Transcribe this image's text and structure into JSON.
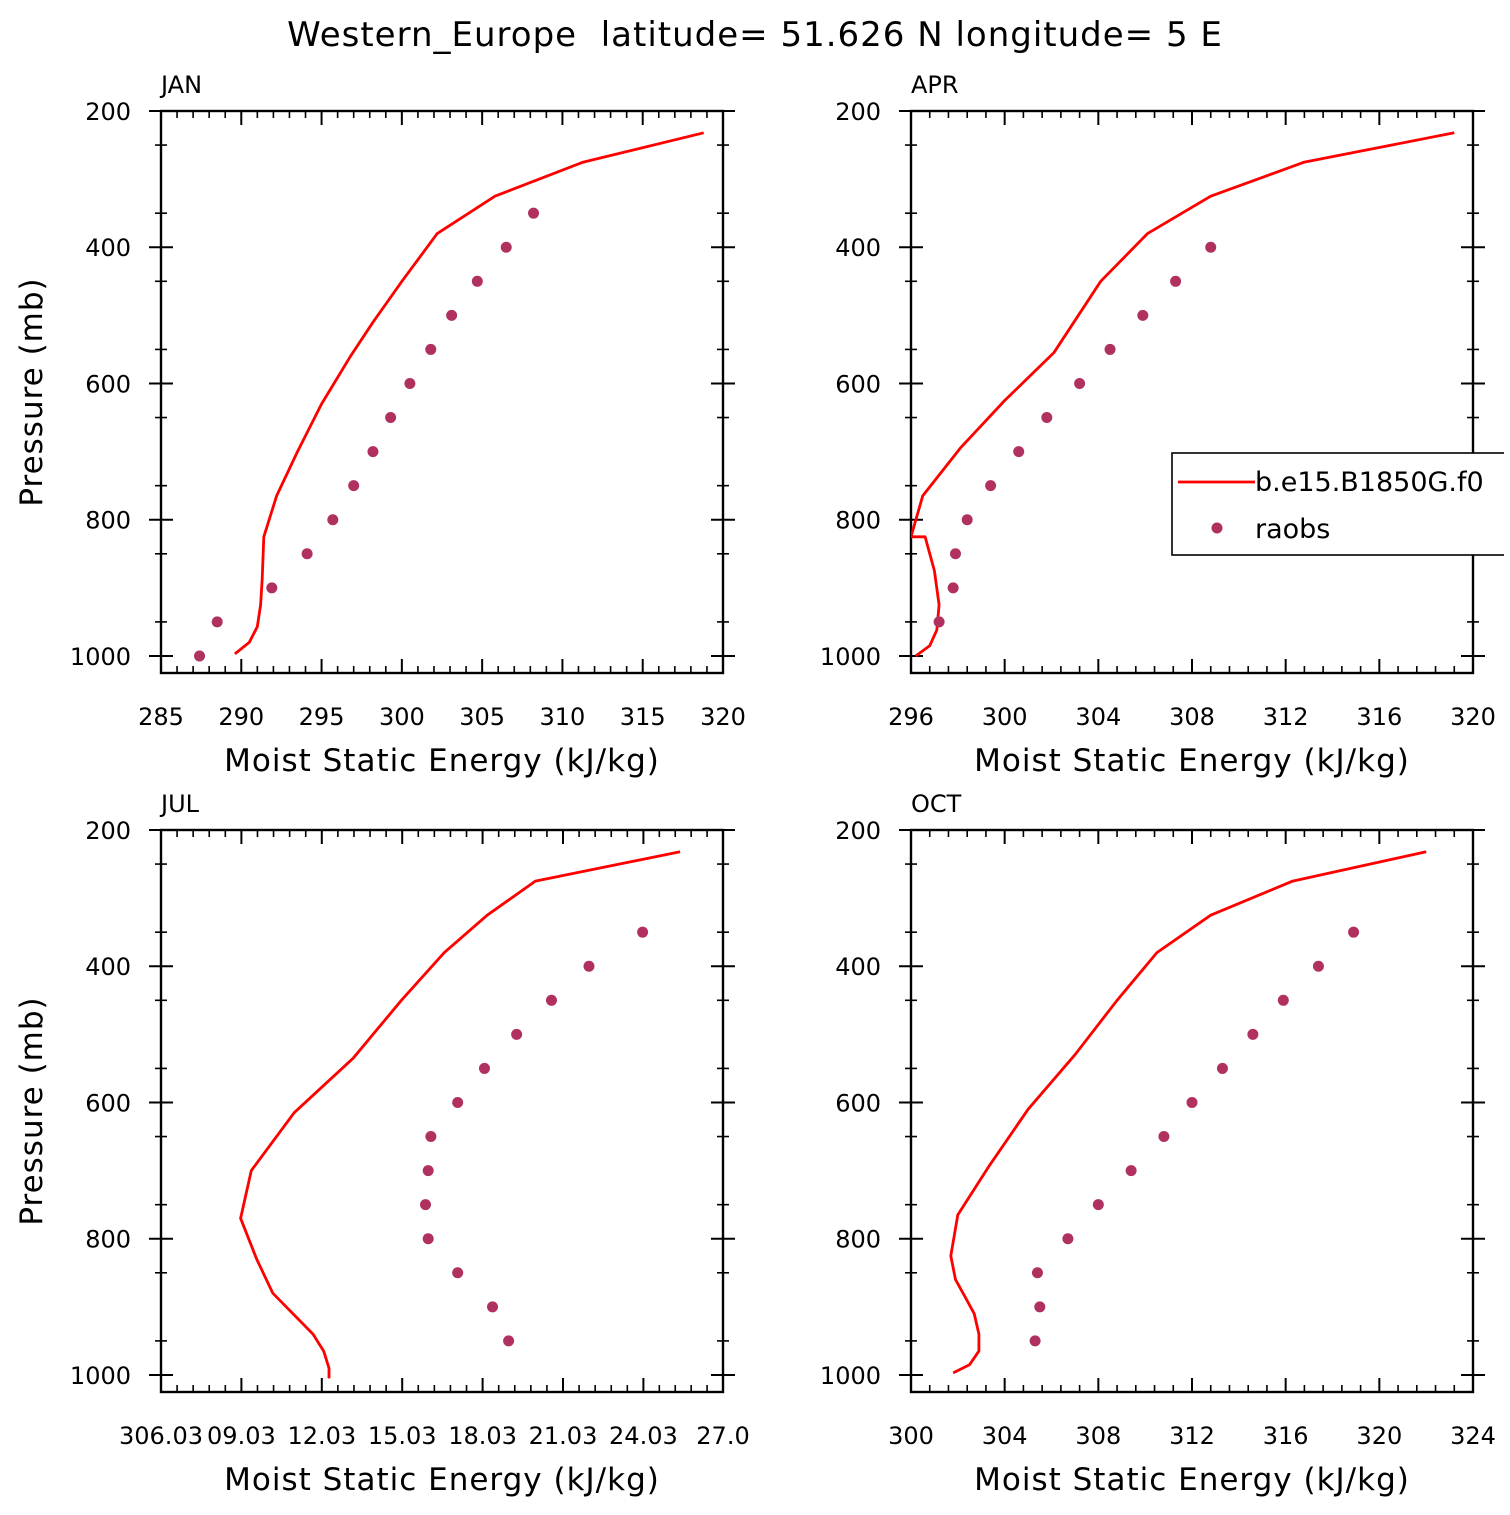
{
  "title": "Western_Europe  latitude= 51.626 N longitude= 5 E",
  "colors": {
    "model": "#ff0000",
    "obs": "#b03060"
  },
  "legend": {
    "model_label": "b.e15.B1850G.f0",
    "obs_label": "raobs"
  },
  "chart_data": [
    {
      "type": "line",
      "panel": "JAN",
      "xlabel": "Moist Static Energy (kJ/kg)",
      "ylabel": "Pressure (mb)",
      "xlim": [
        285,
        320
      ],
      "ylim": [
        1025,
        200
      ],
      "x_ticks": [
        285,
        290,
        295,
        300,
        305,
        310,
        315,
        320
      ],
      "x_tick_labels": [
        "285",
        "290",
        "295",
        "300",
        "305",
        "310",
        "315",
        "320"
      ],
      "y_ticks": [
        200,
        400,
        600,
        800,
        1000
      ],
      "y_tick_labels": [
        "200",
        "400",
        "600",
        "800",
        "1000"
      ],
      "legend": false,
      "series": [
        {
          "kind": "line",
          "x": [
            289.6,
            290.5,
            291.0,
            291.2,
            291.3,
            291.4,
            292.2,
            293.5,
            295.0,
            296.8,
            298.2,
            300.0,
            302.2,
            305.8,
            311.3,
            318.8
          ],
          "y": [
            997,
            980,
            957,
            925,
            887,
            825,
            765,
            700,
            630,
            560,
            510,
            450,
            380,
            325,
            275,
            232
          ]
        },
        {
          "kind": "scatter",
          "x": [
            287.4,
            288.5,
            291.9,
            294.1,
            295.7,
            297.0,
            298.2,
            299.3,
            300.5,
            301.8,
            303.1,
            304.7,
            306.5,
            308.2
          ],
          "y": [
            1000,
            950,
            900,
            850,
            800,
            750,
            700,
            650,
            600,
            550,
            500,
            450,
            400,
            350
          ]
        }
      ]
    },
    {
      "type": "line",
      "panel": "APR",
      "xlabel": "Moist Static Energy (kJ/kg)",
      "ylabel": "",
      "xlim": [
        296,
        320
      ],
      "ylim": [
        1025,
        200
      ],
      "x_ticks": [
        296,
        300,
        304,
        308,
        312,
        316,
        320
      ],
      "x_tick_labels": [
        "296",
        "300",
        "304",
        "308",
        "312",
        "316",
        "320"
      ],
      "y_ticks": [
        200,
        400,
        600,
        800,
        1000
      ],
      "y_tick_labels": [
        "200",
        "400",
        "600",
        "800",
        "1000"
      ],
      "legend": true,
      "series": [
        {
          "kind": "line",
          "x": [
            296.2,
            296.8,
            297.1,
            297.2,
            297.0,
            296.6,
            296.0,
            296.5,
            298.1,
            300.0,
            302.1,
            304.1,
            306.1,
            308.8,
            312.8,
            319.2
          ],
          "y": [
            1000,
            985,
            962,
            925,
            875,
            825,
            825,
            765,
            695,
            625,
            555,
            450,
            380,
            325,
            275,
            232
          ]
        },
        {
          "kind": "scatter",
          "x": [
            297.2,
            297.8,
            297.9,
            298.4,
            299.4,
            300.6,
            301.8,
            303.2,
            304.5,
            305.9,
            307.3,
            308.8
          ],
          "y": [
            950,
            900,
            850,
            800,
            750,
            700,
            650,
            600,
            550,
            500,
            450,
            400
          ]
        }
      ]
    },
    {
      "type": "line",
      "panel": "JUL",
      "xlabel": "Moist Static Energy (kJ/kg)",
      "ylabel": "Pressure (mb)",
      "xlim": [
        306.03,
        327.0
      ],
      "ylim": [
        1025,
        200
      ],
      "x_ticks": [
        306.03,
        309.03,
        312.03,
        315.03,
        318.03,
        321.03,
        324.03,
        327.0
      ],
      "x_tick_labels": [
        "306.03",
        "09.03",
        "12.03",
        "15.03",
        "18.03",
        "21.03",
        "24.03",
        "27.0"
      ],
      "y_ticks": [
        200,
        400,
        600,
        800,
        1000
      ],
      "y_tick_labels": [
        "200",
        "400",
        "600",
        "800",
        "1000"
      ],
      "legend": false,
      "series": [
        {
          "kind": "line",
          "x": [
            312.3,
            312.3,
            312.1,
            311.7,
            310.2,
            309.6,
            309.0,
            309.4,
            311.0,
            313.2,
            315.0,
            316.6,
            318.2,
            320.0,
            325.4
          ],
          "y": [
            1005,
            990,
            965,
            940,
            880,
            830,
            770,
            700,
            615,
            535,
            450,
            380,
            325,
            275,
            232
          ]
        },
        {
          "kind": "scatter",
          "x": [
            319.0,
            318.4,
            317.1,
            316.0,
            315.9,
            316.0,
            316.1,
            317.1,
            318.1,
            319.3,
            320.6,
            322.0,
            324.0
          ],
          "y": [
            950,
            900,
            850,
            800,
            750,
            700,
            650,
            600,
            550,
            500,
            450,
            400,
            350
          ]
        }
      ]
    },
    {
      "type": "line",
      "panel": "OCT",
      "xlabel": "Moist Static Energy (kJ/kg)",
      "ylabel": "",
      "xlim": [
        300,
        324
      ],
      "ylim": [
        1025,
        200
      ],
      "x_ticks": [
        300,
        304,
        308,
        312,
        316,
        320,
        324
      ],
      "x_tick_labels": [
        "300",
        "304",
        "308",
        "312",
        "316",
        "320",
        "324"
      ],
      "y_ticks": [
        200,
        400,
        600,
        800,
        1000
      ],
      "y_tick_labels": [
        "200",
        "400",
        "600",
        "800",
        "1000"
      ],
      "legend": false,
      "series": [
        {
          "kind": "line",
          "x": [
            301.8,
            302.5,
            302.9,
            302.9,
            302.7,
            302.3,
            301.9,
            301.7,
            302.0,
            303.3,
            305.0,
            307.0,
            308.8,
            310.5,
            312.8,
            316.3,
            322.0
          ],
          "y": [
            997,
            985,
            965,
            940,
            910,
            885,
            860,
            825,
            765,
            695,
            610,
            530,
            450,
            380,
            325,
            275,
            232
          ]
        },
        {
          "kind": "scatter",
          "x": [
            305.3,
            305.5,
            305.4,
            306.7,
            308.0,
            309.4,
            310.8,
            312.0,
            313.3,
            314.6,
            315.9,
            317.4,
            318.9
          ],
          "y": [
            950,
            900,
            850,
            800,
            750,
            700,
            650,
            600,
            550,
            500,
            450,
            400,
            350
          ]
        }
      ]
    }
  ]
}
